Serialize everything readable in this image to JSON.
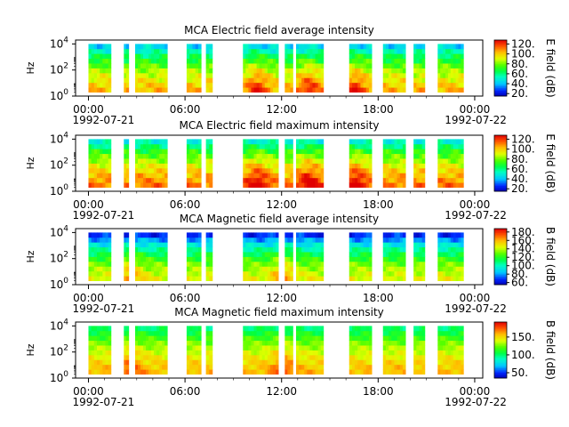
{
  "chart_data": [
    {
      "type": "heatmap",
      "title": "MCA  Electric field average intensity",
      "ylabel": "Hz",
      "yticks": [
        "10^0",
        "10^2",
        "10^4"
      ],
      "ylim_log10": [
        0,
        4.3
      ],
      "xticks": [
        "00:00",
        "06:00",
        "12:00",
        "18:00",
        "00:00"
      ],
      "xtick_hours": [
        0,
        6,
        12,
        18,
        24
      ],
      "date_start": "1992-07-21",
      "date_end": "1992-07-22",
      "colorbar_label": "E field (dB)",
      "colorbar_ticks": [
        20,
        40,
        60,
        80,
        100,
        120
      ],
      "clim": [
        15,
        128
      ],
      "data_intervals_hours": [
        [
          0.0,
          1.4
        ],
        [
          2.2,
          2.5
        ],
        [
          2.9,
          4.9
        ],
        [
          6.1,
          7.0
        ],
        [
          7.3,
          7.7
        ],
        [
          9.6,
          11.8
        ],
        [
          12.2,
          12.7
        ],
        [
          12.9,
          14.6
        ],
        [
          16.2,
          17.6
        ],
        [
          18.3,
          19.7
        ],
        [
          20.2,
          20.9
        ],
        [
          21.7,
          23.3
        ]
      ],
      "intensity_profile": {
        "base": 75,
        "low_freq_boost": 30,
        "high_freq_drop": 35,
        "bursts_hours": [
          10.5,
          13.7,
          16.6
        ]
      }
    },
    {
      "type": "heatmap",
      "title": "MCA  Electric field maximum intensity",
      "ylabel": "Hz",
      "yticks": [
        "10^0",
        "10^2",
        "10^4"
      ],
      "ylim_log10": [
        0,
        4.3
      ],
      "xticks": [
        "00:00",
        "06:00",
        "12:00",
        "18:00",
        "00:00"
      ],
      "xtick_hours": [
        0,
        6,
        12,
        18,
        24
      ],
      "date_start": "1992-07-21",
      "date_end": "1992-07-22",
      "colorbar_label": "E field (dB)",
      "colorbar_ticks": [
        20,
        40,
        60,
        80,
        100,
        120
      ],
      "clim": [
        15,
        128
      ],
      "data_intervals_hours": [
        [
          0.0,
          1.4
        ],
        [
          2.2,
          2.5
        ],
        [
          2.9,
          4.9
        ],
        [
          6.1,
          7.0
        ],
        [
          7.3,
          7.7
        ],
        [
          9.6,
          11.8
        ],
        [
          12.2,
          12.7
        ],
        [
          12.9,
          14.6
        ],
        [
          16.2,
          17.6
        ],
        [
          18.3,
          19.7
        ],
        [
          20.2,
          20.9
        ],
        [
          21.7,
          23.3
        ]
      ],
      "intensity_profile": {
        "base": 82,
        "low_freq_boost": 32,
        "high_freq_drop": 35,
        "bursts_hours": [
          10.5,
          13.7,
          16.6
        ]
      }
    },
    {
      "type": "heatmap",
      "title": "MCA  Magnetic field average intensity",
      "ylabel": "Hz",
      "yticks": [
        "10^0",
        "10^2",
        "10^4"
      ],
      "ylim_log10": [
        0,
        4.3
      ],
      "xticks": [
        "00:00",
        "06:00",
        "12:00",
        "18:00",
        "00:00"
      ],
      "xtick_hours": [
        0,
        6,
        12,
        18,
        24
      ],
      "date_start": "1992-07-21",
      "date_end": "1992-07-22",
      "colorbar_label": "B field (dB)",
      "colorbar_ticks": [
        60,
        80,
        100,
        120,
        140,
        160,
        180
      ],
      "clim": [
        55,
        188
      ],
      "data_intervals_hours": [
        [
          0.0,
          1.4
        ],
        [
          2.2,
          2.5
        ],
        [
          2.9,
          4.9
        ],
        [
          6.1,
          7.0
        ],
        [
          7.3,
          7.7
        ],
        [
          9.6,
          11.8
        ],
        [
          12.2,
          12.7
        ],
        [
          12.9,
          14.6
        ],
        [
          16.2,
          17.6
        ],
        [
          18.3,
          19.7
        ],
        [
          20.2,
          20.9
        ],
        [
          21.7,
          23.3
        ]
      ],
      "intensity_profile": {
        "base": 120,
        "low_freq_boost": 28,
        "high_freq_drop": 60,
        "bursts_hours": [
          2.6,
          12.1
        ]
      }
    },
    {
      "type": "heatmap",
      "title": "MCA  Magnetic field maximum intensity",
      "ylabel": "Hz",
      "yticks": [
        "10^0",
        "10^2",
        "10^4"
      ],
      "ylim_log10": [
        0,
        4.3
      ],
      "xticks": [
        "00:00",
        "06:00",
        "12:00",
        "18:00",
        "00:00"
      ],
      "xtick_hours": [
        0,
        6,
        12,
        18,
        24
      ],
      "date_start": "1992-07-21",
      "date_end": "1992-07-22",
      "colorbar_label": "B field (dB)",
      "colorbar_ticks": [
        50,
        100,
        150
      ],
      "clim": [
        35,
        192
      ],
      "data_intervals_hours": [
        [
          0.0,
          1.4
        ],
        [
          2.2,
          2.5
        ],
        [
          2.9,
          4.9
        ],
        [
          6.1,
          7.0
        ],
        [
          7.3,
          7.7
        ],
        [
          9.6,
          11.8
        ],
        [
          12.2,
          12.7
        ],
        [
          12.9,
          14.6
        ],
        [
          16.2,
          17.6
        ],
        [
          18.3,
          19.7
        ],
        [
          20.2,
          20.9
        ],
        [
          21.7,
          23.3
        ]
      ],
      "intensity_profile": {
        "base": 130,
        "low_freq_boost": 30,
        "high_freq_drop": 35,
        "bursts_hours": [
          2.6,
          12.1
        ]
      }
    }
  ]
}
